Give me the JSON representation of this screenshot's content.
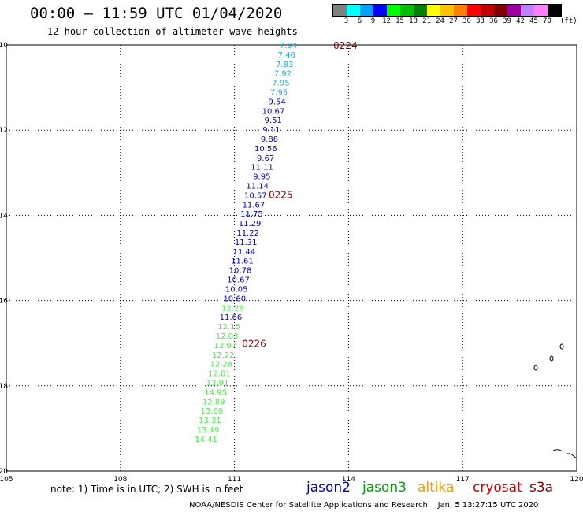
{
  "header": {
    "title": "00:00 – 11:59 UTC 01/04/2020",
    "subtitle": "12 hour collection of altimeter wave heights"
  },
  "colorbar": {
    "colors": [
      "#808080",
      "#00ffff",
      "#00a0ff",
      "#0000ff",
      "#00ff00",
      "#00c000",
      "#008000",
      "#ffff00",
      "#ffc000",
      "#ff8000",
      "#ff0000",
      "#c00000",
      "#800000",
      "#a000a0",
      "#c080ff",
      "#ff80ff",
      "#000000"
    ],
    "labels": [
      "3",
      "6",
      "9",
      "12",
      "15",
      "18",
      "21",
      "24",
      "27",
      "30",
      "33",
      "36",
      "39",
      "42",
      "45",
      "70"
    ],
    "unit": "(ft)"
  },
  "map": {
    "x_ticks": [
      "105",
      "108",
      "111",
      "114",
      "117",
      "120"
    ],
    "y_ticks": [
      "-10",
      "-12",
      "-14",
      "-16",
      "-18",
      "-20"
    ],
    "time_labels": [
      {
        "text": "0224",
        "lat": -10.0,
        "lon": 113.6
      },
      {
        "text": "0225",
        "lat": -13.5,
        "lon": 111.9
      },
      {
        "text": "0226",
        "lat": -17.0,
        "lon": 111.2
      }
    ],
    "observations": [
      {
        "v": "7.94",
        "lat": -10.0,
        "lon": 112.65,
        "c": "#22aadd"
      },
      {
        "v": "7.46",
        "lat": -10.22,
        "lon": 112.6,
        "c": "#22aadd"
      },
      {
        "v": "7.83",
        "lat": -10.44,
        "lon": 112.55,
        "c": "#22aadd"
      },
      {
        "v": "7.92",
        "lat": -10.66,
        "lon": 112.5,
        "c": "#22aadd"
      },
      {
        "v": "7.95",
        "lat": -10.88,
        "lon": 112.45,
        "c": "#22aadd"
      },
      {
        "v": "7.95",
        "lat": -11.1,
        "lon": 112.4,
        "c": "#22aadd"
      },
      {
        "v": "9.54",
        "lat": -11.32,
        "lon": 112.35,
        "c": "#0000cc"
      },
      {
        "v": "10.67",
        "lat": -11.54,
        "lon": 112.32,
        "c": "#0000cc"
      },
      {
        "v": "9.51",
        "lat": -11.76,
        "lon": 112.25,
        "c": "#0000cc"
      },
      {
        "v": "9.11",
        "lat": -11.98,
        "lon": 112.2,
        "c": "#0000cc"
      },
      {
        "v": "9.88",
        "lat": -12.2,
        "lon": 112.15,
        "c": "#0000cc"
      },
      {
        "v": "10.56",
        "lat": -12.42,
        "lon": 112.12,
        "c": "#0000cc"
      },
      {
        "v": "9.67",
        "lat": -12.64,
        "lon": 112.05,
        "c": "#0000cc"
      },
      {
        "v": "11.11",
        "lat": -12.86,
        "lon": 112.02,
        "c": "#0000cc"
      },
      {
        "v": "9.95",
        "lat": -13.08,
        "lon": 111.95,
        "c": "#0000cc"
      },
      {
        "v": "11.14",
        "lat": -13.3,
        "lon": 111.9,
        "c": "#0000cc"
      },
      {
        "v": "10.57",
        "lat": -13.52,
        "lon": 111.85,
        "c": "#0000cc"
      },
      {
        "v": "11.67",
        "lat": -13.74,
        "lon": 111.8,
        "c": "#0000cc"
      },
      {
        "v": "11.75",
        "lat": -13.96,
        "lon": 111.75,
        "c": "#0000cc"
      },
      {
        "v": "11.29",
        "lat": -14.18,
        "lon": 111.7,
        "c": "#0000cc"
      },
      {
        "v": "11.22",
        "lat": -14.4,
        "lon": 111.65,
        "c": "#0000cc"
      },
      {
        "v": "11.31",
        "lat": -14.62,
        "lon": 111.6,
        "c": "#0000cc"
      },
      {
        "v": "11.44",
        "lat": -14.84,
        "lon": 111.55,
        "c": "#0000cc"
      },
      {
        "v": "11.61",
        "lat": -15.06,
        "lon": 111.5,
        "c": "#0000cc"
      },
      {
        "v": "10.78",
        "lat": -15.28,
        "lon": 111.45,
        "c": "#0000cc"
      },
      {
        "v": "10.67",
        "lat": -15.5,
        "lon": 111.4,
        "c": "#0000cc"
      },
      {
        "v": "10.05",
        "lat": -15.72,
        "lon": 111.35,
        "c": "#0000cc"
      },
      {
        "v": "10.60",
        "lat": -15.94,
        "lon": 111.3,
        "c": "#0000cc"
      },
      {
        "v": "12.28",
        "lat": -16.16,
        "lon": 111.25,
        "c": "#44ee44"
      },
      {
        "v": "11.66",
        "lat": -16.38,
        "lon": 111.2,
        "c": "#0000cc"
      },
      {
        "v": "12.15",
        "lat": -16.6,
        "lon": 111.15,
        "c": "#44ee44"
      },
      {
        "v": "12.03",
        "lat": -16.82,
        "lon": 111.1,
        "c": "#44ee44"
      },
      {
        "v": "12.97",
        "lat": -17.04,
        "lon": 111.05,
        "c": "#44ee44"
      },
      {
        "v": "12.22",
        "lat": -17.26,
        "lon": 111.0,
        "c": "#44ee44"
      },
      {
        "v": "12.28",
        "lat": -17.48,
        "lon": 110.95,
        "c": "#44ee44"
      },
      {
        "v": "12.81",
        "lat": -17.7,
        "lon": 110.9,
        "c": "#44ee44"
      },
      {
        "v": "13.91",
        "lat": -17.92,
        "lon": 110.85,
        "c": "#44ee44"
      },
      {
        "v": "14.95",
        "lat": -18.14,
        "lon": 110.8,
        "c": "#44ee44"
      },
      {
        "v": "12.89",
        "lat": -18.36,
        "lon": 110.75,
        "c": "#44ee44"
      },
      {
        "v": "13.60",
        "lat": -18.58,
        "lon": 110.7,
        "c": "#44ee44"
      },
      {
        "v": "13.31",
        "lat": -18.8,
        "lon": 110.65,
        "c": "#44ee44"
      },
      {
        "v": "13.49",
        "lat": -19.02,
        "lon": 110.6,
        "c": "#44ee44"
      },
      {
        "v": "14.41",
        "lat": -19.24,
        "lon": 110.55,
        "c": "#44ee44"
      }
    ]
  },
  "note": "note: 1) Time is in UTC; 2) SWH is in feet",
  "legend": [
    {
      "name": "jason2",
      "color": "#0000cc"
    },
    {
      "name": "jason3",
      "color": "#00a000"
    },
    {
      "name": "altika",
      "color": "#ff9900"
    },
    {
      "name": "cryosat",
      "color": "#cc0000"
    },
    {
      "name": "s3a",
      "color": "#880000"
    }
  ],
  "credit": "NOAA/NESDIS Center for Satellite Applications and Research    Jan  5 13:27:15 UTC 2020"
}
